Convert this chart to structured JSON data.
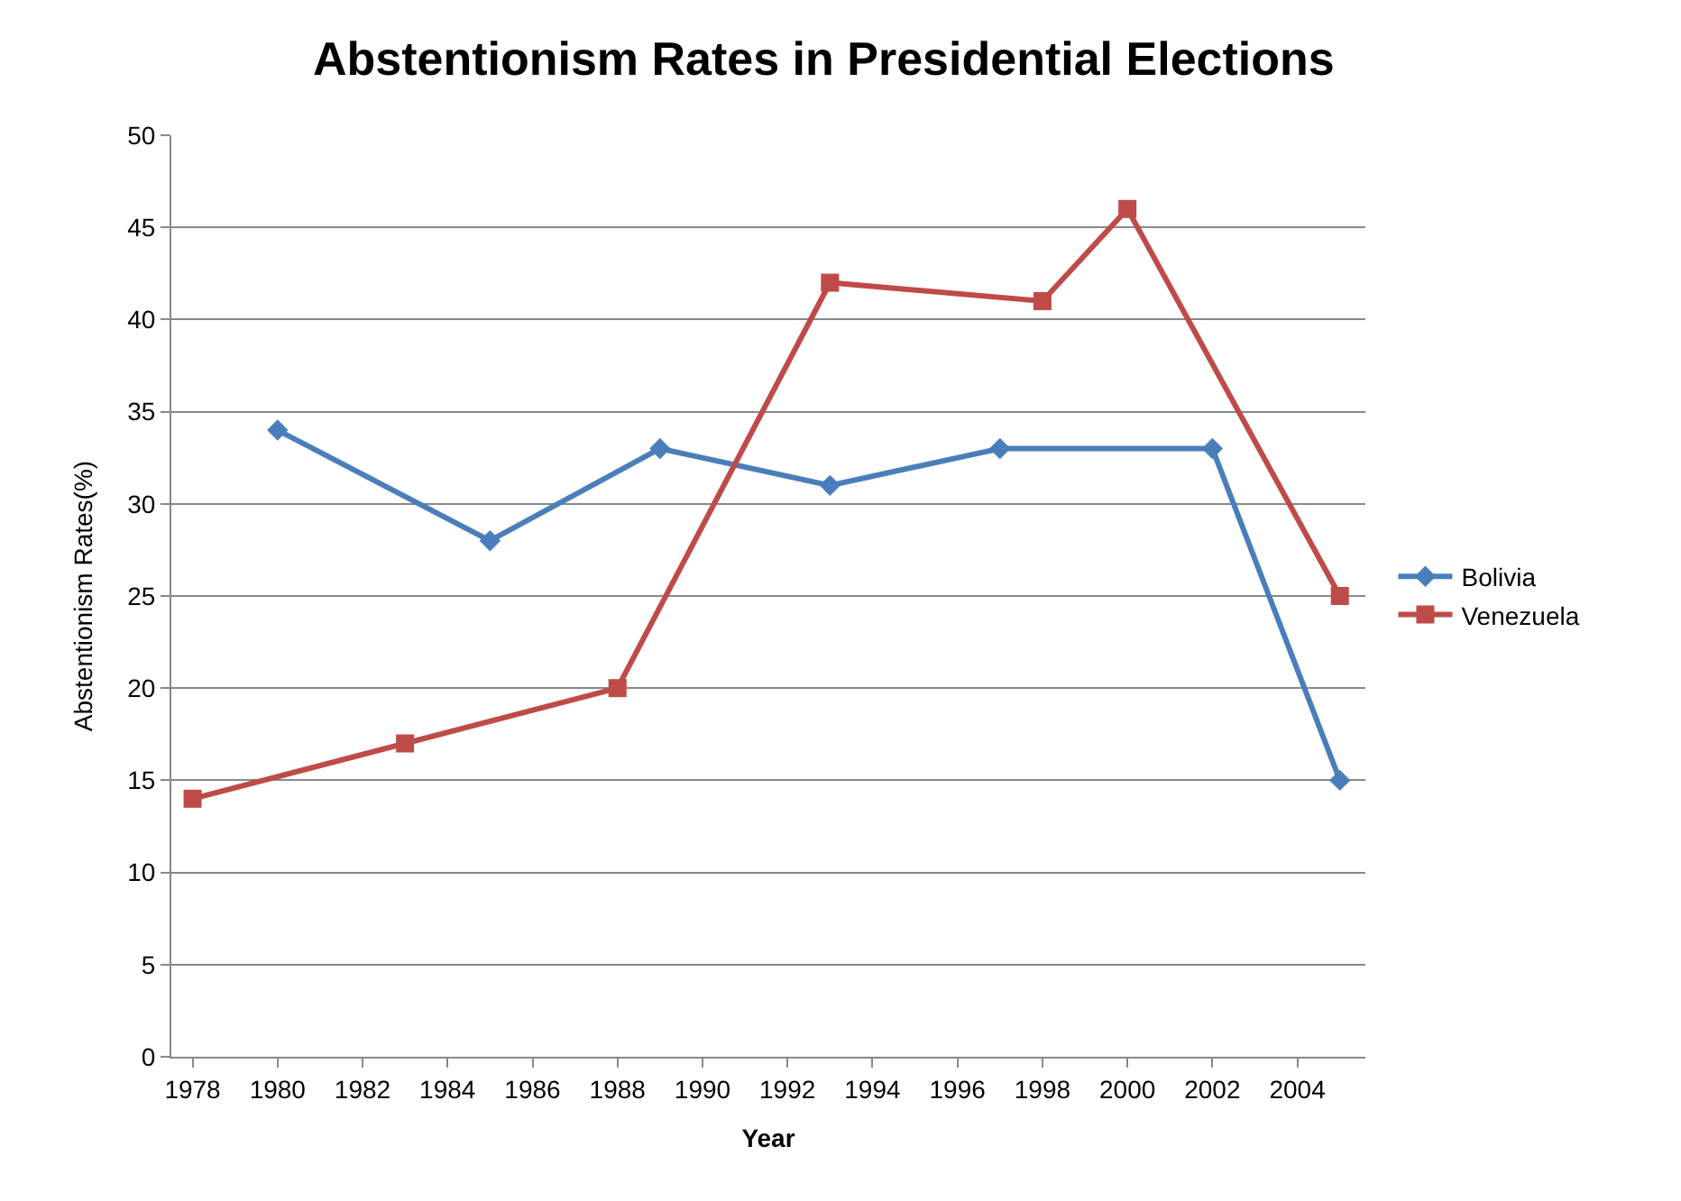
{
  "chart_data": {
    "type": "line",
    "title": "Abstentionism Rates in Presidential Elections",
    "xlabel": "Year",
    "ylabel": "Abstentionism Rates(%)",
    "series": [
      {
        "name": "Bolivia",
        "color": "#4a7ebb",
        "marker": "diamond",
        "x": [
          1980,
          1985,
          1989,
          1993,
          1997,
          2002,
          2005
        ],
        "values": [
          34,
          28,
          33,
          31,
          33,
          33,
          15
        ]
      },
      {
        "name": "Venezuela",
        "color": "#be4b48",
        "marker": "square",
        "x": [
          1978,
          1983,
          1988,
          1993,
          1998,
          2000,
          2005
        ],
        "values": [
          14,
          17,
          20,
          42,
          41,
          46,
          25
        ]
      }
    ],
    "xlim": [
      1977.5,
      2005.6
    ],
    "xticks": [
      1978,
      1980,
      1982,
      1984,
      1986,
      1988,
      1990,
      1992,
      1994,
      1996,
      1998,
      2000,
      2002,
      2004
    ],
    "ylim": [
      0,
      50
    ],
    "yticks": [
      0,
      5,
      10,
      15,
      20,
      25,
      30,
      35,
      40,
      45,
      50
    ],
    "grid": "y",
    "legend": "right",
    "line_style": "solid"
  }
}
